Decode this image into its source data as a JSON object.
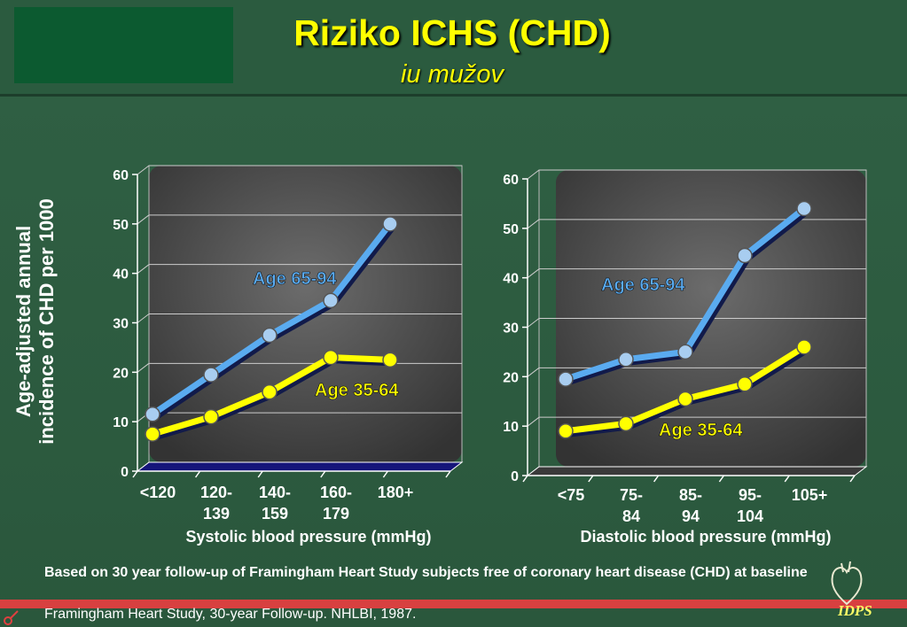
{
  "title": "Riziko ICHS (CHD)",
  "subtitle": "iu mužov",
  "ylabel": "Age-adjusted annual incidence of CHD per 1000",
  "ylabel_line1": "Age-adjusted annual",
  "ylabel_line2": "incidence of CHD per 1000",
  "footnote": "Based on 30 year follow-up of Framingham Heart Study subjects free of coronary heart disease (CHD) at baseline",
  "source": "Framingham Heart Study, 30-year Follow-up. NHLBI, 1987.",
  "logo_text": "IDPS",
  "colors": {
    "old": "#5aabf0",
    "young": "#ffff00",
    "title": "#ffff00",
    "background": "#2a5a3e"
  },
  "chart_data": [
    {
      "type": "line",
      "xlabel": "Systolic blood pressure (mmHg)",
      "ylabel": "Age-adjusted annual incidence of CHD per 1000",
      "categories": [
        "<120",
        "120-\n139",
        "140-\n159",
        "160-\n179",
        "180+"
      ],
      "ylim": [
        0,
        60
      ],
      "yticks": [
        0,
        10,
        20,
        30,
        40,
        50,
        60
      ],
      "series": [
        {
          "name": "Age 65-94",
          "values": [
            11.5,
            19.5,
            27.5,
            34.5,
            50.0
          ]
        },
        {
          "name": "Age 35-64",
          "values": [
            7.5,
            11.0,
            16.0,
            23.0,
            22.5
          ]
        }
      ]
    },
    {
      "type": "line",
      "xlabel": "Diastolic blood pressure (mmHg)",
      "ylabel": "",
      "categories": [
        "<75",
        "75-\n84",
        "85-\n94",
        "95-\n104",
        "105+"
      ],
      "ylim": [
        0,
        60
      ],
      "yticks": [
        0,
        10,
        20,
        30,
        40,
        50,
        60
      ],
      "series": [
        {
          "name": "Age 65-94",
          "values": [
            19.5,
            23.5,
            25.0,
            44.5,
            54.0
          ]
        },
        {
          "name": "Age 35-64",
          "values": [
            9.0,
            10.5,
            15.5,
            18.5,
            26.0
          ]
        }
      ]
    }
  ]
}
